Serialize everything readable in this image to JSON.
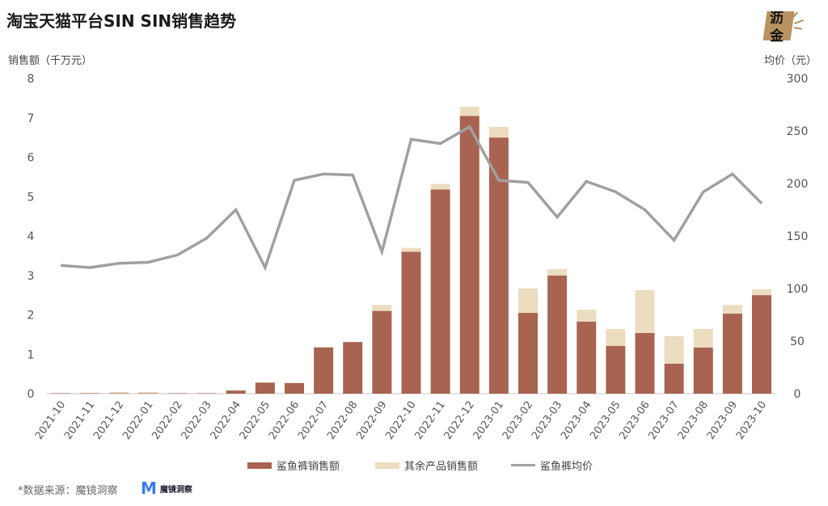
{
  "header": {
    "title": "淘宝天猫平台SIN SIN销售趋势",
    "left_axis_label": "销售额（千万元）",
    "right_axis_label": "均价（元）",
    "brand_logo_line1": "沥",
    "brand_logo_line2": "金"
  },
  "legend": {
    "items": [
      {
        "label": "鲨鱼裤销售额",
        "color": "#a86450",
        "kind": "bar"
      },
      {
        "label": "其余产品销售额",
        "color": "#ecdcc0",
        "kind": "bar"
      },
      {
        "label": "鲨鱼裤均价",
        "color": "#a0a0a0",
        "kind": "line"
      }
    ]
  },
  "footer": {
    "source": "*数据来源：魔镜洞察",
    "logo_mark": "M",
    "logo_text": "魔镜洞察"
  },
  "colors": {
    "shark_bar": "#a86450",
    "other_bar": "#ecdcc0",
    "line": "#a0a0a0",
    "axis": "#d9d9d9",
    "tick_text": "#555555"
  },
  "chart_data": {
    "type": "bar",
    "subtype": "stacked bar + line (dual axis)",
    "title": "淘宝天猫平台SIN SIN销售趋势",
    "xlabel": "",
    "ylabel": "销售额（千万元）",
    "y2label": "均价（元）",
    "ylim": [
      0,
      8
    ],
    "y2lim": [
      0,
      300
    ],
    "yticks": [
      0,
      1,
      2,
      3,
      4,
      5,
      6,
      7,
      8
    ],
    "y2ticks": [
      0,
      50,
      100,
      150,
      200,
      250,
      300
    ],
    "grid": false,
    "legend_position": "bottom",
    "categories": [
      "2021-10",
      "2021-11",
      "2021-12",
      "2022-01",
      "2022-02",
      "2022-03",
      "2022-04",
      "2022-05",
      "2022-06",
      "2022-07",
      "2022-08",
      "2022-09",
      "2022-10",
      "2022-11",
      "2022-12",
      "2023-01",
      "2023-02",
      "2023-03",
      "2023-04",
      "2023-05",
      "2023-06",
      "2023-07",
      "2023-08",
      "2023-09",
      "2023-10"
    ],
    "series": [
      {
        "name": "鲨鱼裤销售额",
        "type": "bar",
        "axis": "left",
        "stack": "sales",
        "values": [
          0.01,
          0.01,
          0.01,
          0.01,
          0.01,
          0.01,
          0.08,
          0.28,
          0.27,
          1.17,
          1.31,
          2.1,
          3.6,
          5.18,
          7.05,
          6.5,
          2.05,
          3.0,
          1.83,
          1.21,
          1.54,
          0.76,
          1.17,
          2.03,
          2.5
        ]
      },
      {
        "name": "其余产品销售额",
        "type": "bar",
        "axis": "left",
        "stack": "sales",
        "values": [
          0.0,
          0.01,
          0.03,
          0.03,
          0.0,
          0.0,
          0.0,
          0.0,
          0.0,
          0.02,
          0.0,
          0.15,
          0.1,
          0.14,
          0.23,
          0.27,
          0.62,
          0.16,
          0.3,
          0.43,
          1.09,
          0.7,
          0.47,
          0.22,
          0.15
        ]
      },
      {
        "name": "鲨鱼裤均价",
        "type": "line",
        "axis": "right",
        "values": [
          122,
          120,
          124,
          125,
          132,
          148,
          175,
          120,
          203,
          209,
          208,
          135,
          242,
          238,
          254,
          203,
          201,
          168,
          202,
          192,
          175,
          146,
          192,
          209,
          181
        ]
      }
    ]
  }
}
